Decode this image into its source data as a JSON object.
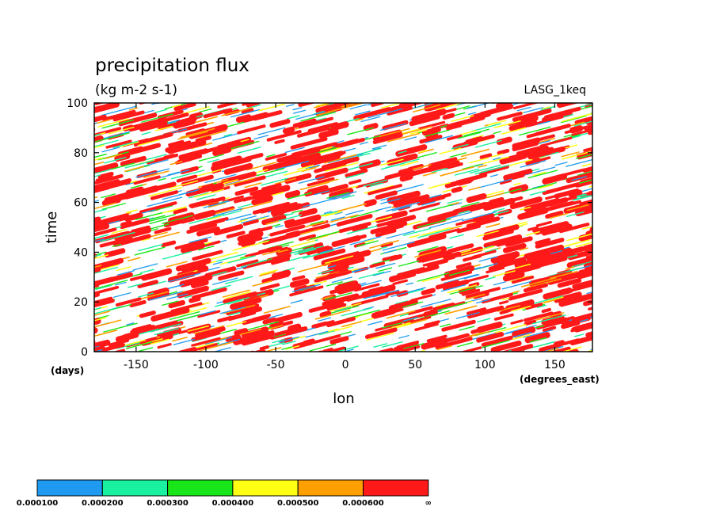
{
  "chart_data": {
    "type": "heatmap",
    "title": "precipitation flux",
    "subtitle": "(kg m-2 s-1)",
    "dataset_label": "LASG_1keq",
    "xlabel": "lon",
    "ylabel": "time",
    "x_units": "(degrees_east)",
    "y_units": "(days)",
    "xlim": [
      -180,
      177
    ],
    "ylim": [
      0,
      100
    ],
    "x_ticks": [
      -150,
      -100,
      -50,
      0,
      50,
      100,
      150
    ],
    "x_tick_labels": [
      "-150",
      "-100",
      "-50",
      "0",
      "50",
      "100",
      "150"
    ],
    "y_ticks": [
      0,
      20,
      40,
      60,
      80,
      100
    ],
    "y_tick_labels": [
      "0",
      "20",
      "40",
      "60",
      "80",
      "100"
    ],
    "grid": false,
    "colorbar": {
      "placement": "bottom-left",
      "levels": [
        "0.000100",
        "0.000200",
        "0.000300",
        "0.000400",
        "0.000500",
        "0.000600",
        "∞"
      ],
      "colors": [
        "#1e9bf0",
        "#19f0a0",
        "#19e619",
        "#ffff14",
        "#ffa000",
        "#ff1919"
      ]
    },
    "pattern_note": "Precipitation bands tilt eastward-upward across the full longitude range; red cores (>0.0006) dominate, white gaps where below 0.0001."
  }
}
